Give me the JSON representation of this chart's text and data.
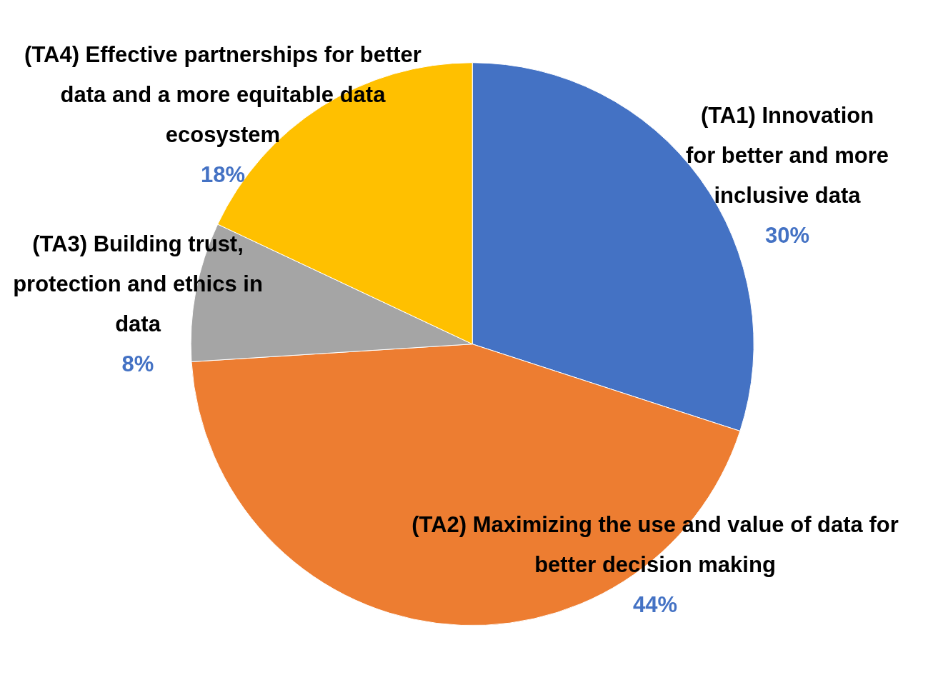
{
  "chart_data": {
    "type": "pie",
    "categories": [
      "(TA1) Innovation for better and more inclusive data",
      "(TA2) Maximizing the use and value of data for better decision making",
      "(TA3) Building trust, protection and ethics in data",
      "(TA4) Effective partnerships for better data and a more equitable data ecosystem"
    ],
    "values": [
      30,
      44,
      8,
      18
    ],
    "value_labels": [
      "30%",
      "44%",
      "8%",
      "18%"
    ],
    "colors": [
      "#4472c4",
      "#ed7d31",
      "#a5a5a5",
      "#ffc000"
    ]
  }
}
